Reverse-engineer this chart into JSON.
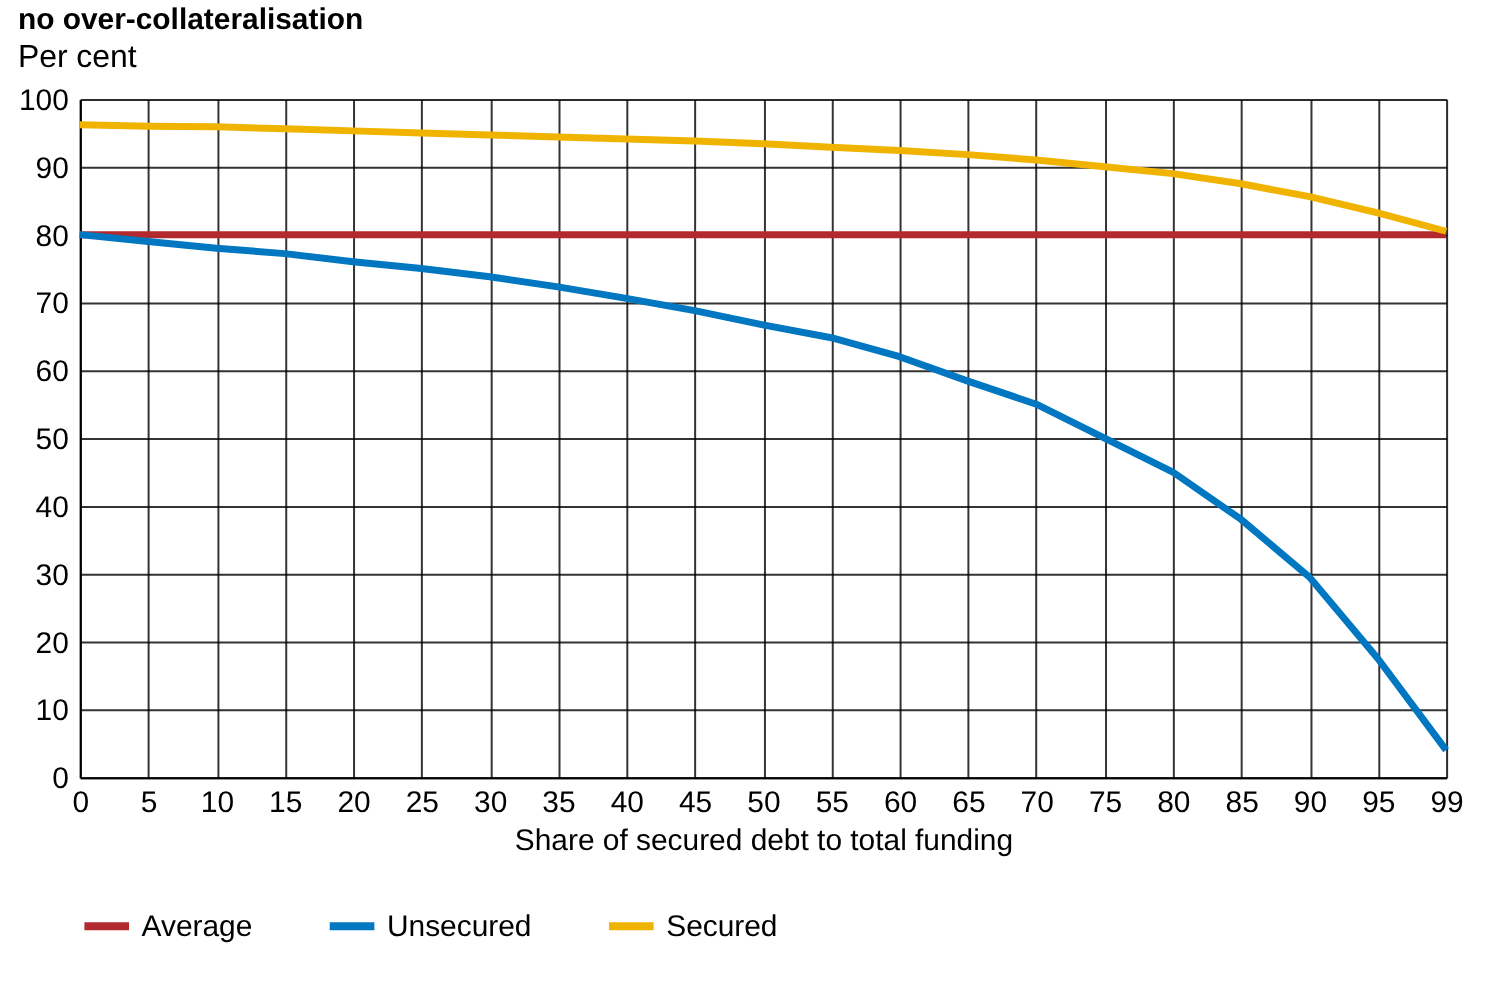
{
  "chart_data": {
    "type": "line",
    "title": "no over-collateralisation",
    "subtitle": "Per cent",
    "xlabel": "Share of secured debt to total funding",
    "categories": [
      "0",
      "5",
      "10",
      "15",
      "20",
      "25",
      "30",
      "35",
      "40",
      "45",
      "50",
      "55",
      "60",
      "65",
      "70",
      "75",
      "80",
      "85",
      "90",
      "95",
      "99"
    ],
    "series": [
      {
        "name": "Average",
        "color": "#b22a2e",
        "values": [
          80,
          80,
          80,
          80,
          80,
          80,
          80,
          80,
          80,
          80,
          80,
          80,
          80,
          80,
          80,
          80,
          80,
          80,
          80,
          80,
          80
        ]
      },
      {
        "name": "Unsecured",
        "color": "#0077c0",
        "values": [
          80,
          79,
          78,
          77.2,
          76,
          75,
          73.8,
          72.3,
          70.6,
          68.8,
          66.7,
          64.8,
          62,
          58.4,
          55,
          50,
          45,
          38,
          29.5,
          17.5,
          4
        ]
      },
      {
        "name": "Secured",
        "color": "#f0b400",
        "values": [
          96.2,
          96,
          95.9,
          95.6,
          95.3,
          95,
          94.7,
          94.4,
          94.1,
          93.8,
          93.4,
          92.9,
          92.4,
          91.8,
          91,
          90,
          89,
          87.5,
          85.6,
          83.2,
          80.5
        ]
      }
    ],
    "ylim": [
      0,
      100
    ],
    "yticks": [
      0,
      10,
      20,
      30,
      40,
      50,
      60,
      70,
      80,
      90,
      100
    ],
    "grid": true,
    "legend": "bottom left",
    "line_style": "solid"
  }
}
